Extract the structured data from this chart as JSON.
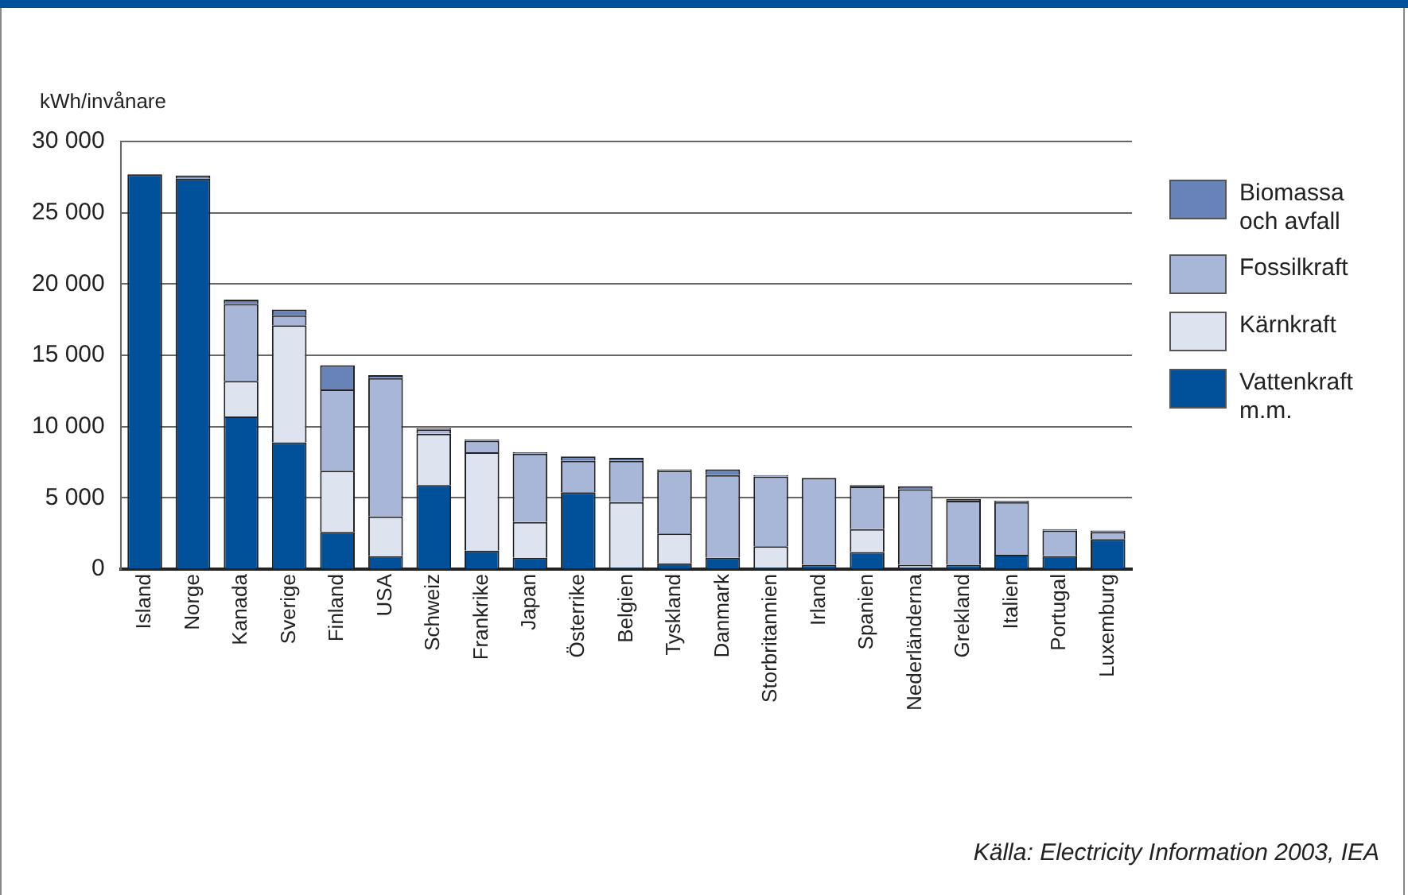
{
  "chart_data": {
    "type": "bar",
    "stacked": true,
    "ylabel": "kWh/invånare",
    "categories": [
      "Island",
      "Norge",
      "Kanada",
      "Sverige",
      "Finland",
      "USA",
      "Schweiz",
      "Frankrike",
      "Japan",
      "Österrike",
      "Belgien",
      "Tyskland",
      "Danmark",
      "Storbritannien",
      "Irland",
      "Spanien",
      "Nederländerna",
      "Grekland",
      "Italien",
      "Portugal",
      "Luxemburg"
    ],
    "series": [
      {
        "name": "Vattenkraft m.m.",
        "color": "#00519a",
        "values": [
          27700,
          27400,
          10700,
          8900,
          2600,
          900,
          5900,
          1300,
          800,
          5400,
          100,
          400,
          800,
          100,
          300,
          1200,
          100,
          300,
          1000,
          900,
          2100
        ]
      },
      {
        "name": "Kärnkraft",
        "color": "#dde3ef",
        "values": [
          0,
          0,
          2500,
          8200,
          4300,
          2800,
          3600,
          6900,
          2500,
          0,
          4600,
          2100,
          0,
          1500,
          0,
          1600,
          200,
          0,
          0,
          0,
          0
        ]
      },
      {
        "name": "Fossilkraft",
        "color": "#a8b6d8",
        "values": [
          0,
          0,
          5400,
          700,
          5700,
          9700,
          300,
          800,
          4800,
          2200,
          2900,
          4400,
          5800,
          4900,
          6100,
          3000,
          5300,
          4500,
          3700,
          1800,
          500
        ]
      },
      {
        "name": "Biomassa och avfall",
        "color": "#6783b8",
        "values": [
          0,
          200,
          300,
          400,
          1700,
          200,
          100,
          100,
          100,
          300,
          200,
          100,
          400,
          100,
          0,
          100,
          200,
          100,
          100,
          100,
          100
        ]
      }
    ],
    "ylim": [
      0,
      30000
    ],
    "yticks": [
      {
        "value": 0,
        "label": "0"
      },
      {
        "value": 5000,
        "label": "5 000"
      },
      {
        "value": 10000,
        "label": "10 000"
      },
      {
        "value": 15000,
        "label": "15 000"
      },
      {
        "value": 20000,
        "label": "20 000"
      },
      {
        "value": 25000,
        "label": "25 000"
      },
      {
        "value": 30000,
        "label": "30 000"
      }
    ],
    "grid": "y",
    "legend": "right",
    "annotations": [
      "Källa: Electricity Information 2003, IEA"
    ]
  }
}
